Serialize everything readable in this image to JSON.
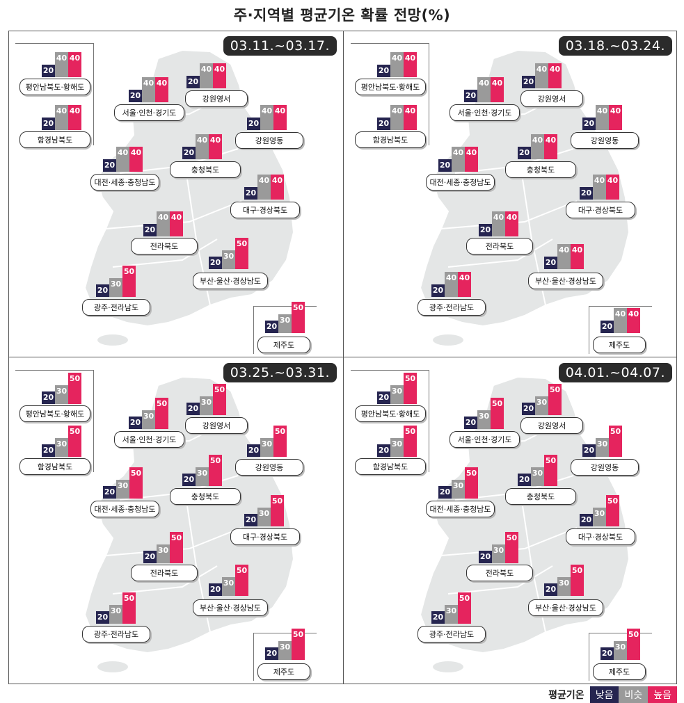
{
  "title": "주·지역별 평균기온 확률 전망(%)",
  "legend": {
    "title": "평균기온",
    "low": "낮음",
    "similar": "비슷",
    "high": "높음"
  },
  "colors": {
    "low": "#262550",
    "similar": "#9a9a9a",
    "high": "#e5245e"
  },
  "regions": [
    "평안남북도·황해도",
    "함경남북도",
    "서울·인천·경기도",
    "강원영서",
    "강원영동",
    "대전·세종·충청남도",
    "충청북도",
    "대구·경상북도",
    "전라북도",
    "부산·울산·경상남도",
    "광주·전라남도",
    "제주도"
  ],
  "chart_data": [
    {
      "type": "bar",
      "period": "03.11.~03.17.",
      "series_keys": [
        "낮음",
        "비슷",
        "높음"
      ],
      "values": [
        [
          20,
          40,
          40
        ],
        [
          20,
          40,
          40
        ],
        [
          20,
          40,
          40
        ],
        [
          20,
          40,
          40
        ],
        [
          20,
          40,
          40
        ],
        [
          20,
          40,
          40
        ],
        [
          20,
          40,
          40
        ],
        [
          20,
          40,
          40
        ],
        [
          20,
          40,
          40
        ],
        [
          20,
          30,
          50
        ],
        [
          20,
          30,
          50
        ],
        [
          20,
          30,
          50
        ]
      ]
    },
    {
      "type": "bar",
      "period": "03.18.~03.24.",
      "series_keys": [
        "낮음",
        "비슷",
        "높음"
      ],
      "values": [
        [
          20,
          40,
          40
        ],
        [
          20,
          40,
          40
        ],
        [
          20,
          40,
          40
        ],
        [
          20,
          40,
          40
        ],
        [
          20,
          40,
          40
        ],
        [
          20,
          40,
          40
        ],
        [
          20,
          40,
          40
        ],
        [
          20,
          40,
          40
        ],
        [
          20,
          40,
          40
        ],
        [
          20,
          40,
          40
        ],
        [
          20,
          40,
          40
        ],
        [
          20,
          40,
          40
        ]
      ]
    },
    {
      "type": "bar",
      "period": "03.25.~03.31.",
      "series_keys": [
        "낮음",
        "비슷",
        "높음"
      ],
      "values": [
        [
          20,
          30,
          50
        ],
        [
          20,
          30,
          50
        ],
        [
          20,
          30,
          50
        ],
        [
          20,
          30,
          50
        ],
        [
          20,
          30,
          50
        ],
        [
          20,
          30,
          50
        ],
        [
          20,
          30,
          50
        ],
        [
          20,
          30,
          50
        ],
        [
          20,
          30,
          50
        ],
        [
          20,
          30,
          50
        ],
        [
          20,
          30,
          50
        ],
        [
          20,
          30,
          50
        ]
      ]
    },
    {
      "type": "bar",
      "period": "04.01.~04.07.",
      "series_keys": [
        "낮음",
        "비슷",
        "높음"
      ],
      "values": [
        [
          20,
          30,
          50
        ],
        [
          20,
          30,
          50
        ],
        [
          20,
          30,
          50
        ],
        [
          20,
          30,
          50
        ],
        [
          20,
          30,
          50
        ],
        [
          20,
          30,
          50
        ],
        [
          20,
          30,
          50
        ],
        [
          20,
          30,
          50
        ],
        [
          20,
          30,
          50
        ],
        [
          20,
          30,
          50
        ],
        [
          20,
          30,
          50
        ],
        [
          20,
          30,
          50
        ]
      ]
    }
  ]
}
